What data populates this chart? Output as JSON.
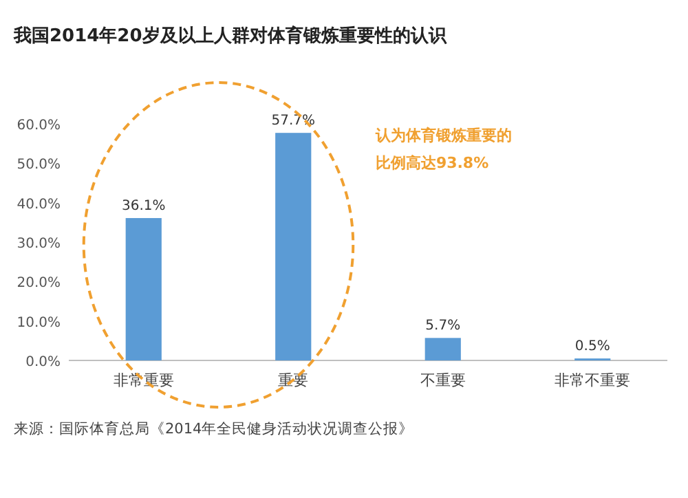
{
  "chart_data": {
    "type": "bar",
    "title": "我国2014年20岁及以上人群对体育锻炼重要性的认识",
    "categories": [
      "非常重要",
      "重要",
      "不重要",
      "非常不重要"
    ],
    "values": [
      36.1,
      57.7,
      5.7,
      0.5
    ],
    "value_labels": [
      "36.1%",
      "57.7%",
      "5.7%",
      "0.5%"
    ],
    "color": "#5b9bd5",
    "ylim": [
      0,
      60
    ],
    "yticks": [
      {
        "value": 0,
        "label": "0.0%"
      },
      {
        "value": 10,
        "label": "10.0%"
      },
      {
        "value": 20,
        "label": "20.0%"
      },
      {
        "value": 30,
        "label": "30.0%"
      },
      {
        "value": 40,
        "label": "40.0%"
      },
      {
        "value": 50,
        "label": "50.0%"
      },
      {
        "value": 60,
        "label": "60.0%"
      }
    ],
    "annotations": [
      "认为体育锻炼重要的比例高达93.8%",
      "来源：国际体育总局《2014年全民健身活动状况调查公报》"
    ]
  }
}
